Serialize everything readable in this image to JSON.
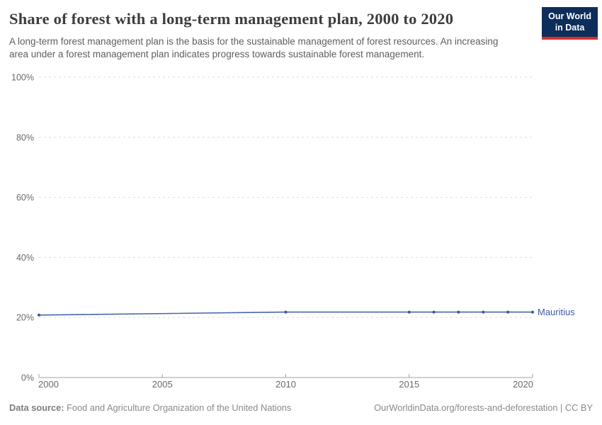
{
  "header": {
    "title": "Share of forest with a long-term management plan, 2000 to 2020",
    "subtitle": "A long-term forest management plan is the basis for the sustainable management of forest resources. An increasing area under a forest management plan indicates progress towards sustainable forest management.",
    "logo": {
      "line1": "Our World",
      "line2": "in Data"
    }
  },
  "footer": {
    "source_label": "Data source:",
    "source_text": " Food and Agriculture Organization of the United Nations",
    "link_text": "OurWorldinData.org/forests-and-deforestation | CC BY"
  },
  "colors": {
    "navy": "#0d2e5a",
    "red": "#dc2e25",
    "series_line": "#4668a8",
    "series_dot": "#3a5795",
    "series_label": "#3d5c9f"
  },
  "chart_data": {
    "type": "line",
    "title": "Share of forest with a long-term management plan, 2000 to 2020",
    "xlabel": "",
    "ylabel": "",
    "xlim": [
      2000,
      2020
    ],
    "ylim": [
      0,
      100
    ],
    "x_ticks": [
      2000,
      2005,
      2010,
      2015,
      2020
    ],
    "y_ticks": [
      0,
      20,
      40,
      60,
      80,
      100
    ],
    "y_tick_suffix": "%",
    "grid": "dashed-horizontal",
    "legend_position": "right-of-line-end",
    "series": [
      {
        "name": "Mauritius",
        "color": "#4668a8",
        "x": [
          2000,
          2010,
          2015,
          2016,
          2017,
          2018,
          2019,
          2020
        ],
        "values": [
          20.8,
          21.8,
          21.8,
          21.8,
          21.8,
          21.8,
          21.8,
          21.8
        ]
      }
    ]
  }
}
